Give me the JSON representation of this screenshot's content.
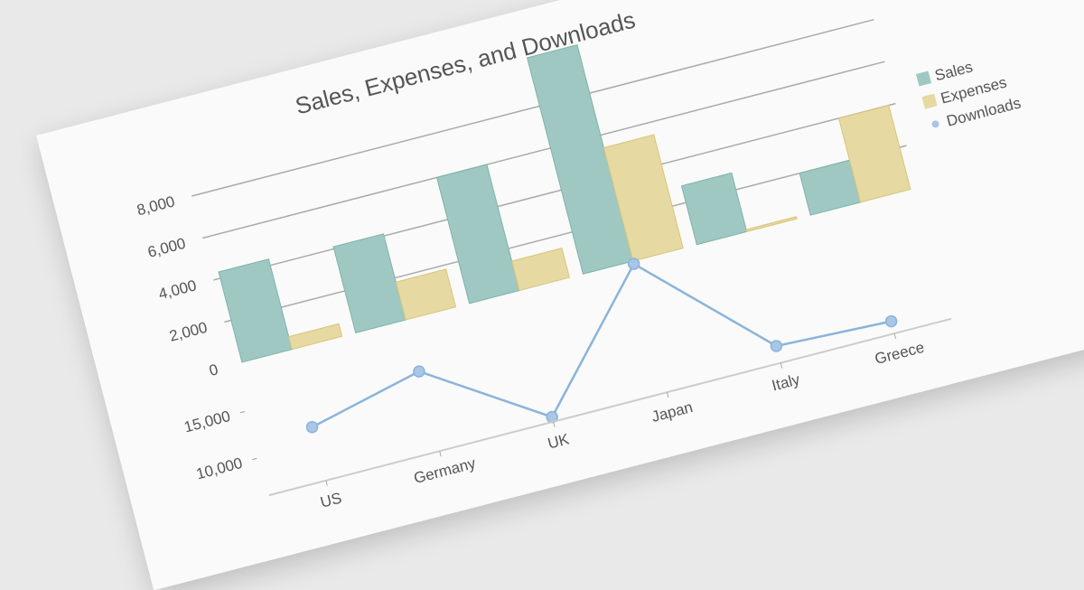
{
  "chart_data": {
    "title": "Sales, Expenses, and Downloads",
    "categories": [
      "US",
      "Germany",
      "UK",
      "Japan",
      "Italy",
      "Greece"
    ],
    "panels": [
      {
        "type": "bar",
        "ylim": [
          0,
          10000
        ],
        "yticks": [
          "0",
          "2,000",
          "4,000",
          "6,000",
          "8,000"
        ],
        "ytick_values": [
          0,
          2000,
          4000,
          6000,
          8000
        ],
        "grid": true,
        "series": [
          {
            "name": "Sales",
            "color": "#9fc8c2",
            "values": [
              4300,
              4100,
              6000,
              10300,
              2800,
              2000
            ]
          },
          {
            "name": "Expenses",
            "color": "#e6d9a2",
            "values": [
              600,
              1800,
              1400,
              5400,
              100,
              4000
            ]
          }
        ]
      },
      {
        "type": "line",
        "ylim": [
          6000,
          20000
        ],
        "yticks": [
          "10,000",
          "15,000"
        ],
        "ytick_values": [
          10000,
          15000
        ],
        "series": [
          {
            "name": "Downloads",
            "color": "#8ab4da",
            "values": [
              11700,
              14500,
              6500,
              19700,
              7800,
              7300
            ]
          }
        ]
      }
    ],
    "legend_position": "right"
  }
}
